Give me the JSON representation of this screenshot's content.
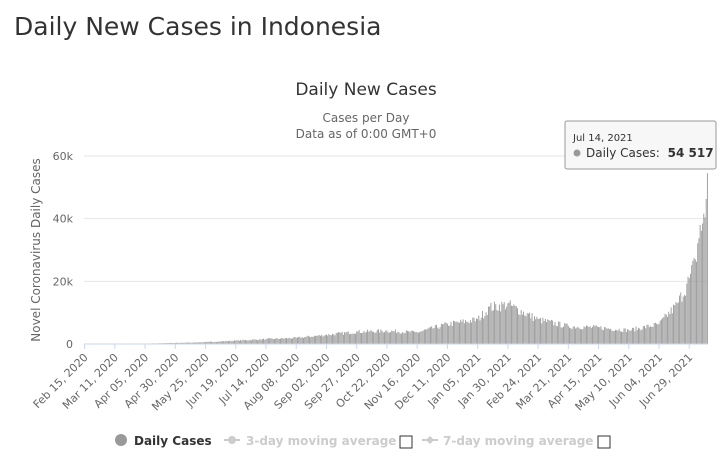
{
  "page": {
    "title": "Daily New Cases in Indonesia"
  },
  "chart_data": {
    "type": "bar",
    "title": "Daily New Cases",
    "subtitle_line1": "Cases per Day",
    "subtitle_line2": "Data as of 0:00 GMT+0",
    "ylabel": "Novel Coronavirus Daily Cases",
    "xlabel": "",
    "ylim": [
      0,
      60000
    ],
    "yticks": [
      {
        "value": 0,
        "label": "0"
      },
      {
        "value": 20000,
        "label": "20k"
      },
      {
        "value": 40000,
        "label": "40k"
      },
      {
        "value": 60000,
        "label": "60k"
      }
    ],
    "x_start": "2020-02-15",
    "x_end": "2021-07-14",
    "xtick_labels": [
      "Feb 15, 2020",
      "Mar 11, 2020",
      "Apr 05, 2020",
      "Apr 30, 2020",
      "May 25, 2020",
      "Jun 19, 2020",
      "Jul 14, 2020",
      "Aug 08, 2020",
      "Sep 02, 2020",
      "Sep 27, 2020",
      "Oct 22, 2020",
      "Nov 16, 2020",
      "Dec 11, 2020",
      "Jan 05, 2021",
      "Jan 30, 2021",
      "Feb 24, 2021",
      "Mar 21, 2021",
      "Apr 15, 2021",
      "May 10, 2021",
      "Jun 04, 2021",
      "Jun 29, 2021"
    ],
    "series": [
      {
        "name": "Daily Cases",
        "color": "#999999",
        "keyframes": [
          {
            "date": "2020-02-15",
            "value": 0
          },
          {
            "date": "2020-03-11",
            "value": 0
          },
          {
            "date": "2020-04-05",
            "value": 150
          },
          {
            "date": "2020-04-30",
            "value": 350
          },
          {
            "date": "2020-05-25",
            "value": 600
          },
          {
            "date": "2020-06-19",
            "value": 1100
          },
          {
            "date": "2020-07-14",
            "value": 1600
          },
          {
            "date": "2020-08-08",
            "value": 2000
          },
          {
            "date": "2020-09-02",
            "value": 3000
          },
          {
            "date": "2020-09-27",
            "value": 4000
          },
          {
            "date": "2020-10-22",
            "value": 4300
          },
          {
            "date": "2020-11-16",
            "value": 3800
          },
          {
            "date": "2020-12-11",
            "value": 6500
          },
          {
            "date": "2021-01-05",
            "value": 8000
          },
          {
            "date": "2021-01-15",
            "value": 12000
          },
          {
            "date": "2021-01-30",
            "value": 13000
          },
          {
            "date": "2021-02-24",
            "value": 8000
          },
          {
            "date": "2021-03-21",
            "value": 5800
          },
          {
            "date": "2021-04-15",
            "value": 5400
          },
          {
            "date": "2021-05-10",
            "value": 4500
          },
          {
            "date": "2021-06-04",
            "value": 6500
          },
          {
            "date": "2021-06-19",
            "value": 13000
          },
          {
            "date": "2021-06-29",
            "value": 21000
          },
          {
            "date": "2021-07-04",
            "value": 27000
          },
          {
            "date": "2021-07-08",
            "value": 38000
          },
          {
            "date": "2021-07-12",
            "value": 40400
          },
          {
            "date": "2021-07-14",
            "value": 54517
          }
        ]
      }
    ],
    "legend": {
      "placement": "bottom",
      "items": [
        {
          "label": "Daily Cases",
          "active": true
        },
        {
          "label": "3-day moving average",
          "active": false
        },
        {
          "label": "7-day moving average",
          "active": false
        }
      ]
    },
    "tooltip": {
      "date": "Jul 14, 2021",
      "label": "Daily Cases:",
      "value": "54 517"
    }
  }
}
